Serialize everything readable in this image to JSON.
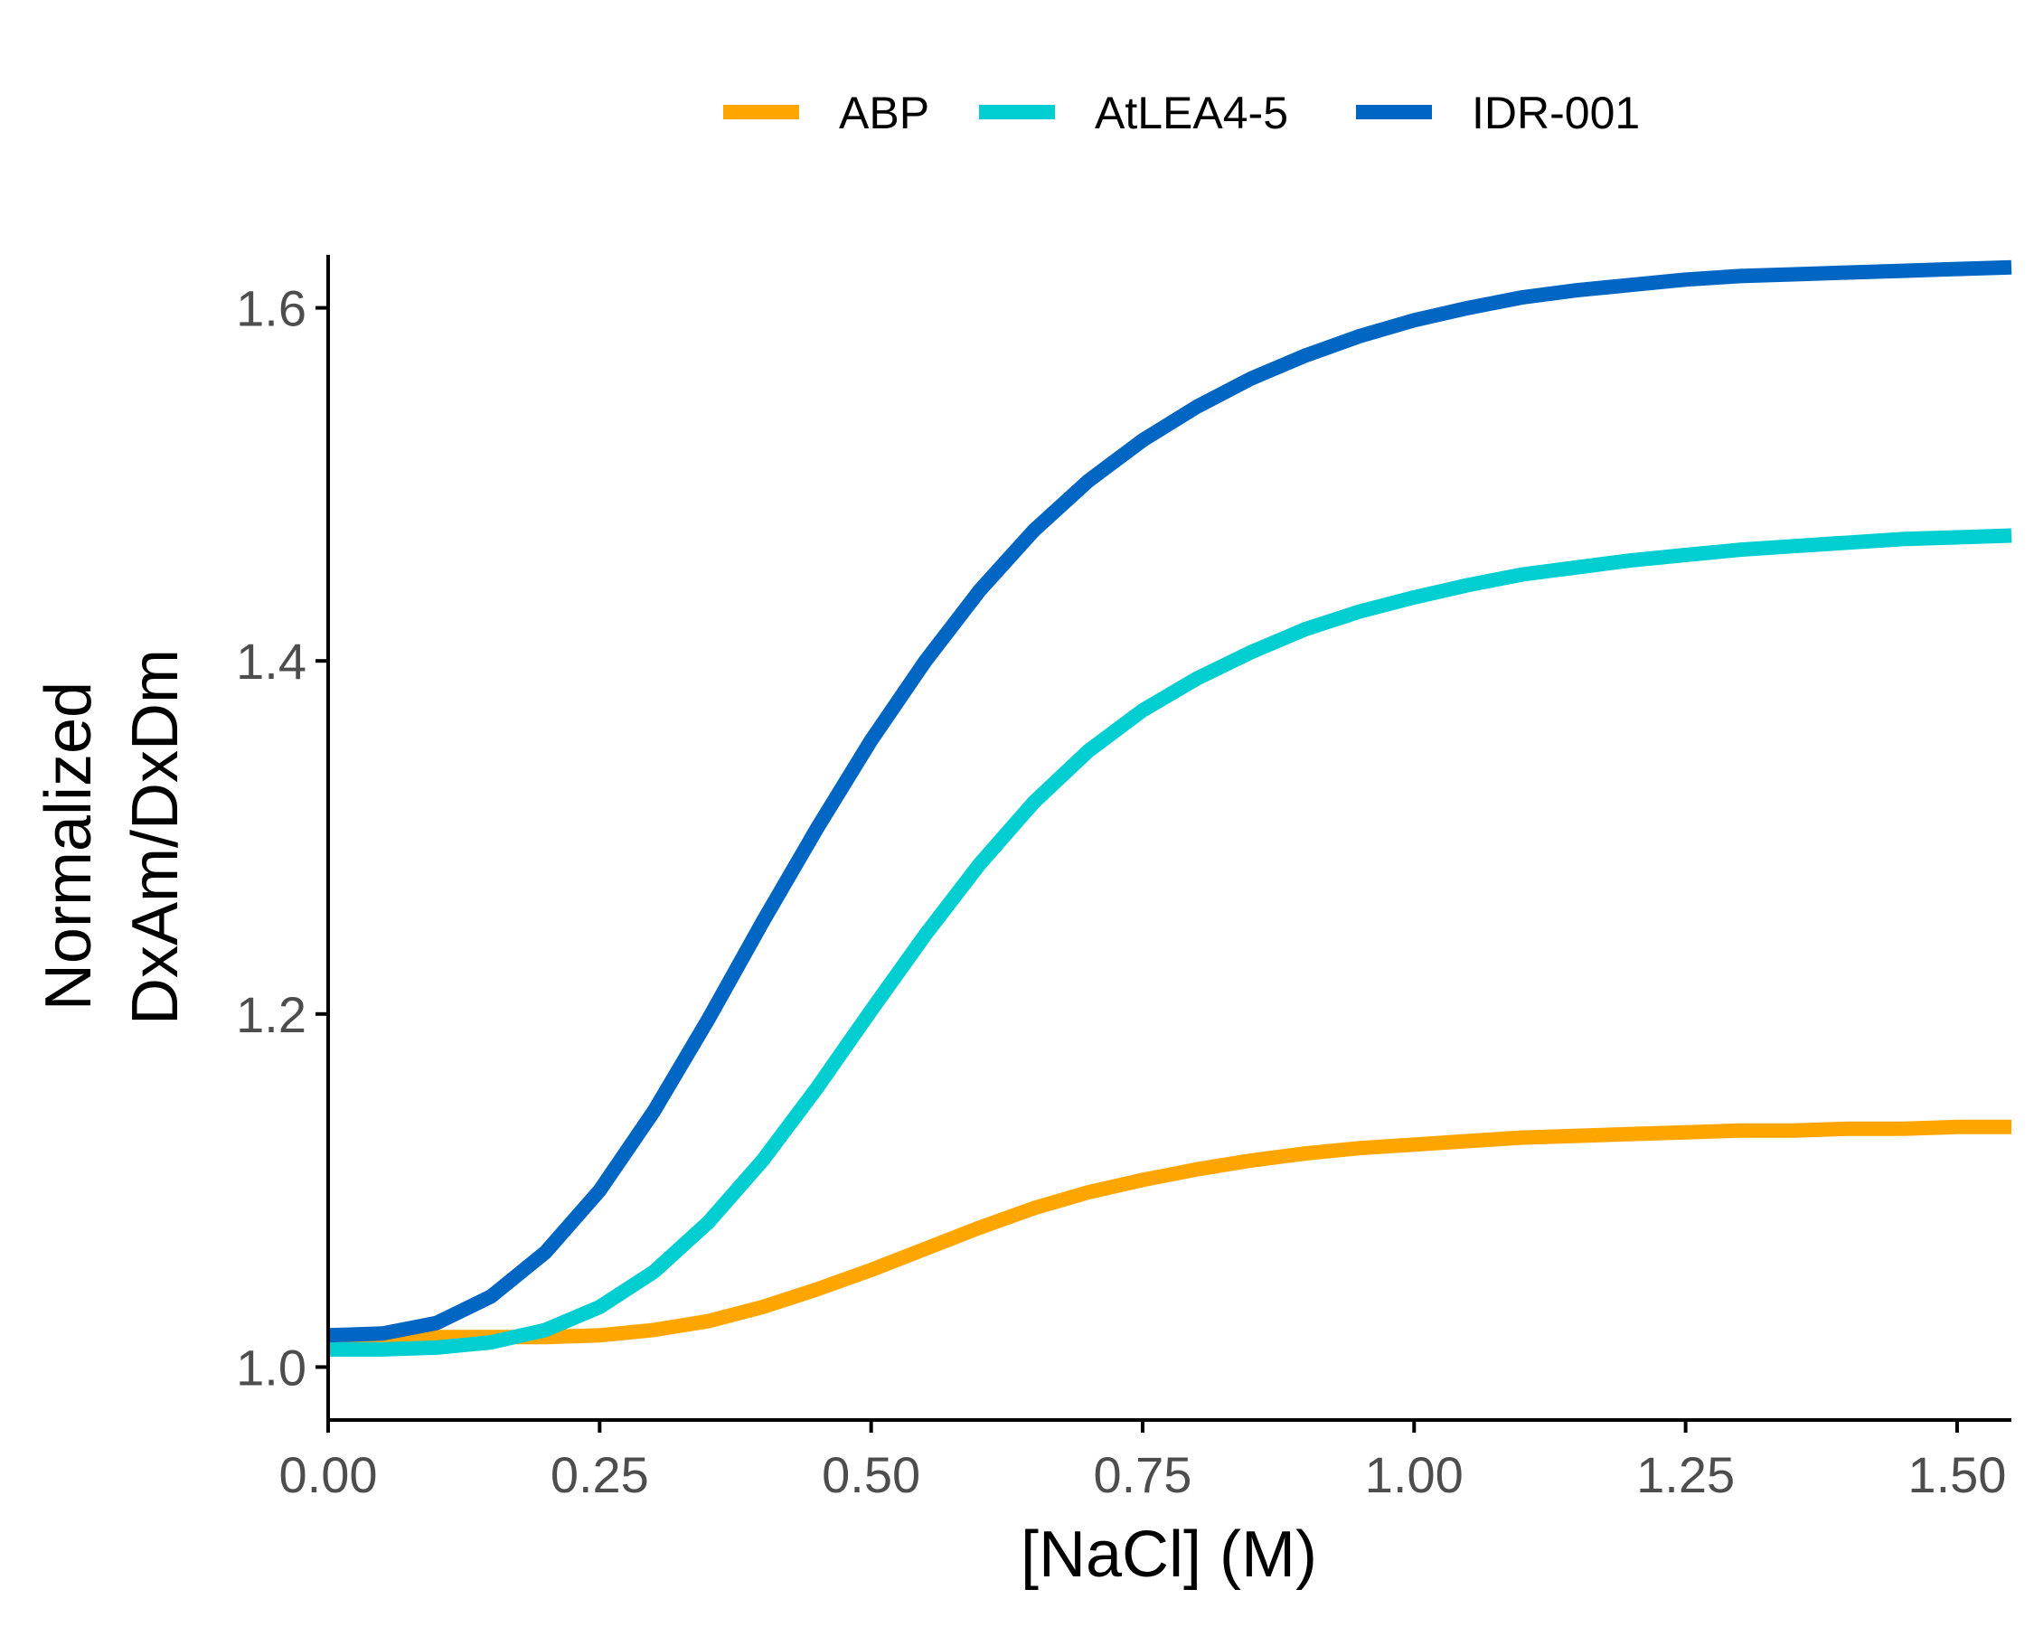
{
  "chart_data": {
    "type": "line",
    "xlabel": "[NaCl] (M)",
    "ylabel_lines": [
      "Normalized",
      "DxAm/DxDm"
    ],
    "xlim": [
      0.0,
      1.55
    ],
    "ylim": [
      0.97,
      1.63
    ],
    "x_ticks": [
      0.0,
      0.25,
      0.5,
      0.75,
      1.0,
      1.25,
      1.5
    ],
    "x_tick_labels": [
      "0.00",
      "0.25",
      "0.50",
      "0.75",
      "1.00",
      "1.25",
      "1.50"
    ],
    "y_ticks": [
      1.0,
      1.2,
      1.4,
      1.6
    ],
    "y_tick_labels": [
      "1.0",
      "1.2",
      "1.4",
      "1.6"
    ],
    "legend_position": "top",
    "grid": false,
    "x": [
      0.0,
      0.05,
      0.1,
      0.15,
      0.2,
      0.25,
      0.3,
      0.35,
      0.4,
      0.45,
      0.5,
      0.55,
      0.6,
      0.65,
      0.7,
      0.75,
      0.8,
      0.85,
      0.9,
      0.95,
      1.0,
      1.05,
      1.1,
      1.15,
      1.2,
      1.25,
      1.3,
      1.35,
      1.4,
      1.45,
      1.5,
      1.55
    ],
    "series": [
      {
        "name": "ABP",
        "color": "#FFA500",
        "values": [
          1.017,
          1.017,
          1.017,
          1.017,
          1.017,
          1.018,
          1.021,
          1.026,
          1.034,
          1.044,
          1.055,
          1.067,
          1.079,
          1.09,
          1.099,
          1.106,
          1.112,
          1.117,
          1.121,
          1.124,
          1.126,
          1.128,
          1.13,
          1.131,
          1.132,
          1.133,
          1.134,
          1.134,
          1.135,
          1.135,
          1.136,
          1.136
        ]
      },
      {
        "name": "AtLEA4-5",
        "color": "#00CED1",
        "values": [
          1.01,
          1.01,
          1.011,
          1.014,
          1.021,
          1.034,
          1.054,
          1.082,
          1.117,
          1.158,
          1.202,
          1.245,
          1.285,
          1.32,
          1.349,
          1.372,
          1.39,
          1.405,
          1.418,
          1.428,
          1.436,
          1.443,
          1.449,
          1.453,
          1.457,
          1.46,
          1.463,
          1.465,
          1.467,
          1.469,
          1.47,
          1.471
        ]
      },
      {
        "name": "IDR-001",
        "color": "#0066C4",
        "values": [
          1.018,
          1.019,
          1.025,
          1.04,
          1.065,
          1.1,
          1.145,
          1.197,
          1.252,
          1.305,
          1.355,
          1.4,
          1.44,
          1.474,
          1.502,
          1.525,
          1.544,
          1.56,
          1.573,
          1.584,
          1.593,
          1.6,
          1.606,
          1.61,
          1.613,
          1.616,
          1.618,
          1.619,
          1.62,
          1.621,
          1.622,
          1.623
        ]
      }
    ]
  }
}
